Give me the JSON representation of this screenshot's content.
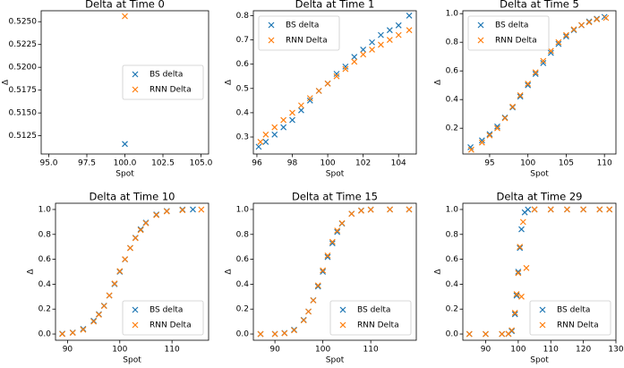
{
  "chart_data": [
    {
      "type": "scatter",
      "title": "Delta at Time 0",
      "x_label": "Spot",
      "y_label": "Δ",
      "legend": "center right",
      "xlim": [
        94.5,
        105.5
      ],
      "xticks": [
        {
          "value": 95,
          "label": "95.0"
        },
        97.5,
        {
          "value": 100,
          "label": "100.0"
        },
        102.5,
        {
          "value": 105,
          "label": "105.0"
        }
      ],
      "ylim": [
        0.5105,
        0.5262
      ],
      "yticks": [
        0.5125,
        {
          "value": 0.515,
          "label": "0.5150"
        },
        0.5175,
        {
          "value": 0.52,
          "label": "0.5200"
        },
        0.5225,
        {
          "value": 0.525,
          "label": "0.5250"
        }
      ],
      "series": [
        {
          "name": "BS delta",
          "color": "#1f77b4",
          "x": [
            100
          ],
          "values": [
            0.5116
          ]
        },
        {
          "name": "RNN Delta",
          "color": "#ff7f0e",
          "x": [
            100
          ],
          "values": [
            0.5256
          ]
        }
      ]
    },
    {
      "type": "scatter",
      "title": "Delta at Time 1",
      "x_label": "Spot",
      "y_label": "Δ",
      "legend": "upper left",
      "xlim": [
        95.8,
        105
      ],
      "xticks": [
        96,
        98,
        100,
        102,
        104
      ],
      "ylim": [
        0.23,
        0.82
      ],
      "yticks": [
        0.3,
        0.4,
        0.5,
        0.6,
        0.7,
        0.8
      ],
      "series": [
        {
          "name": "BS delta",
          "color": "#1f77b4",
          "x": [
            96.1,
            96.5,
            97,
            97.5,
            98,
            98.5,
            99,
            99.5,
            100,
            100.5,
            101,
            101.5,
            102,
            102.5,
            103,
            103.5,
            104,
            104.6
          ],
          "values": [
            0.26,
            0.28,
            0.31,
            0.34,
            0.37,
            0.41,
            0.45,
            0.49,
            0.52,
            0.56,
            0.59,
            0.63,
            0.66,
            0.69,
            0.72,
            0.74,
            0.76,
            0.8
          ]
        },
        {
          "name": "RNN Delta",
          "color": "#ff7f0e",
          "x": [
            96.2,
            96.5,
            97,
            97.5,
            98,
            98.5,
            99,
            99.5,
            100,
            100.5,
            101,
            101.5,
            102,
            102.5,
            103,
            103.5,
            104,
            104.6
          ],
          "values": [
            0.28,
            0.31,
            0.34,
            0.37,
            0.4,
            0.43,
            0.46,
            0.49,
            0.52,
            0.55,
            0.58,
            0.61,
            0.64,
            0.66,
            0.68,
            0.7,
            0.72,
            0.74
          ]
        }
      ]
    },
    {
      "type": "scatter",
      "title": "Delta at Time 5",
      "x_label": "Spot",
      "y_label": "Δ",
      "legend": "upper left",
      "xlim": [
        91.5,
        111.5
      ],
      "xticks": [
        95,
        100,
        105,
        110
      ],
      "ylim": [
        0.02,
        1.02
      ],
      "yticks": [
        0.2,
        0.4,
        0.6,
        0.8,
        {
          "value": 1,
          "label": "1.0"
        }
      ],
      "series": [
        {
          "name": "BS delta",
          "color": "#1f77b4",
          "x": [
            92.5,
            94,
            95,
            96,
            97,
            98,
            99,
            100,
            101,
            102,
            103,
            104,
            105,
            106,
            107,
            108,
            109,
            110
          ],
          "values": [
            0.067,
            0.115,
            0.159,
            0.212,
            0.274,
            0.345,
            0.421,
            0.5,
            0.579,
            0.655,
            0.726,
            0.788,
            0.841,
            0.885,
            0.919,
            0.945,
            0.964,
            0.977
          ]
        },
        {
          "name": "RNN Delta",
          "color": "#ff7f0e",
          "x": [
            92.6,
            94,
            95,
            96,
            97,
            98,
            99,
            100,
            101,
            102,
            103,
            104,
            105,
            106,
            107,
            108,
            109,
            110.2
          ],
          "values": [
            0.05,
            0.1,
            0.15,
            0.2,
            0.27,
            0.35,
            0.43,
            0.51,
            0.59,
            0.67,
            0.74,
            0.8,
            0.85,
            0.89,
            0.92,
            0.94,
            0.96,
            0.97
          ]
        }
      ]
    },
    {
      "type": "scatter",
      "title": "Delta at Time 10",
      "x_label": "Spot",
      "y_label": "Δ",
      "legend": "lower right",
      "xlim": [
        87.7,
        117
      ],
      "xticks": [
        90,
        100,
        110
      ],
      "ylim": [
        -0.05,
        1.05
      ],
      "yticks": [
        {
          "value": 0,
          "label": "0.0"
        },
        0.2,
        0.4,
        0.6,
        0.8,
        {
          "value": 1,
          "label": "1.0"
        }
      ],
      "series": [
        {
          "name": "BS delta",
          "color": "#1f77b4",
          "x": [
            89,
            91,
            93,
            95,
            96,
            97,
            98,
            99,
            100,
            101,
            102,
            103,
            104,
            105,
            107,
            109,
            112,
            114
          ],
          "values": [
            0.003,
            0.012,
            0.04,
            0.106,
            0.159,
            0.227,
            0.309,
            0.401,
            0.5,
            0.599,
            0.691,
            0.773,
            0.841,
            0.894,
            0.96,
            0.988,
            0.999,
            1
          ]
        },
        {
          "name": "RNN Delta",
          "color": "#ff7f0e",
          "x": [
            89,
            91,
            93,
            95,
            96,
            97,
            98,
            99,
            100,
            101,
            102,
            103,
            104,
            105,
            107,
            109,
            112,
            115.6
          ],
          "values": [
            0,
            0.01,
            0.035,
            0.1,
            0.155,
            0.225,
            0.31,
            0.405,
            0.505,
            0.6,
            0.69,
            0.77,
            0.835,
            0.89,
            0.955,
            0.985,
            0.995,
            0.999
          ]
        }
      ]
    },
    {
      "type": "scatter",
      "title": "Delta at Time 15",
      "x_label": "Spot",
      "y_label": "Δ",
      "legend": "lower right",
      "xlim": [
        85.5,
        119.5
      ],
      "xticks": [
        90,
        100,
        110
      ],
      "ylim": [
        -0.05,
        1.05
      ],
      "yticks": [
        {
          "value": 0,
          "label": "0.0"
        },
        0.2,
        0.4,
        0.6,
        0.8,
        {
          "value": 1,
          "label": "1.0"
        }
      ],
      "series": [
        {
          "name": "BS delta",
          "color": "#1f77b4",
          "x": [
            87,
            90,
            92,
            94,
            96,
            97,
            98,
            99,
            100,
            101,
            102,
            103,
            104,
            106,
            108,
            110,
            114,
            118
          ],
          "values": [
            0,
            0.001,
            0.008,
            0.034,
            0.113,
            0.181,
            0.271,
            0.382,
            0.5,
            0.618,
            0.729,
            0.819,
            0.887,
            0.966,
            0.992,
            0.999,
            1,
            1
          ]
        },
        {
          "name": "RNN Delta",
          "color": "#ff7f0e",
          "x": [
            87,
            90,
            92,
            94,
            96,
            97,
            98,
            99,
            100,
            101,
            102,
            103,
            104,
            106,
            108,
            110,
            114,
            118
          ],
          "values": [
            0,
            0,
            0.006,
            0.03,
            0.11,
            0.18,
            0.27,
            0.39,
            0.51,
            0.63,
            0.74,
            0.83,
            0.89,
            0.965,
            0.99,
            0.998,
            1,
            1
          ]
        }
      ]
    },
    {
      "type": "scatter",
      "title": "Delta at Time 29",
      "x_label": "Spot",
      "y_label": "Δ",
      "legend": "lower right",
      "xlim": [
        83,
        130
      ],
      "xticks": [
        90,
        100,
        110,
        120,
        130
      ],
      "ylim": [
        -0.05,
        1.05
      ],
      "yticks": [
        {
          "value": 0,
          "label": "0.0"
        },
        0.2,
        0.4,
        0.6,
        0.8,
        {
          "value": 1,
          "label": "1.0"
        }
      ],
      "series": [
        {
          "name": "BS delta",
          "color": "#1f77b4",
          "x": [
            85,
            90,
            95,
            97,
            98,
            99,
            99.5,
            100,
            100.5,
            101,
            102,
            103,
            105,
            110,
            115,
            120,
            125,
            128
          ],
          "values": [
            0,
            0,
            0,
            0.001,
            0.023,
            0.159,
            0.309,
            0.5,
            0.691,
            0.841,
            0.977,
            0.999,
            1,
            1,
            1,
            1,
            1,
            1
          ]
        },
        {
          "name": "RNN Delta",
          "color": "#ff7f0e",
          "x": [
            85,
            90,
            95,
            97,
            98,
            99,
            99.5,
            100,
            100.5,
            101,
            101.5,
            102.5,
            105,
            110,
            115,
            120,
            125,
            128
          ],
          "values": [
            0,
            0,
            0,
            0.002,
            0.03,
            0.17,
            0.32,
            0.49,
            0.7,
            0.3,
            0.9,
            0.53,
            1,
            1,
            1,
            1,
            1,
            1
          ]
        }
      ]
    }
  ]
}
